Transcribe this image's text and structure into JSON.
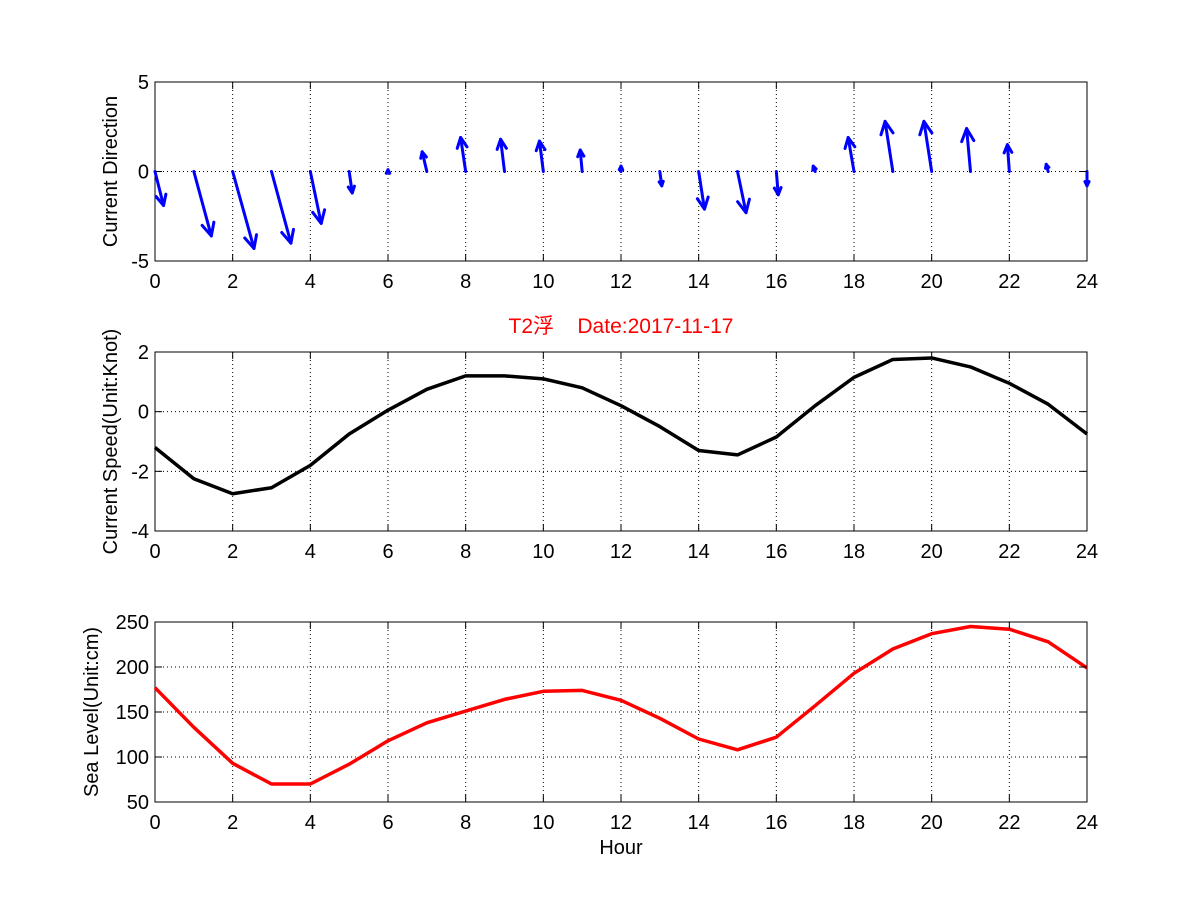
{
  "chart_data": [
    {
      "type": "quiver",
      "title": "",
      "xlabel": "",
      "ylabel": "Current Direction",
      "xlim": [
        0,
        24
      ],
      "ylim": [
        -5,
        5
      ],
      "xticks": [
        0,
        2,
        4,
        6,
        8,
        10,
        12,
        14,
        16,
        18,
        20,
        22,
        24
      ],
      "yticks": [
        -5,
        0,
        5
      ],
      "grid": true,
      "color": "#0000ff",
      "vectors": [
        {
          "x": 0,
          "u": 0.22,
          "v": -1.9
        },
        {
          "x": 1,
          "u": 0.45,
          "v": -3.6
        },
        {
          "x": 2,
          "u": 0.55,
          "v": -4.3
        },
        {
          "x": 3,
          "u": 0.5,
          "v": -4.0
        },
        {
          "x": 4,
          "u": 0.28,
          "v": -2.9
        },
        {
          "x": 5,
          "u": 0.08,
          "v": -1.2
        },
        {
          "x": 6,
          "u": 0.0,
          "v": 0.1
        },
        {
          "x": 7,
          "u": -0.12,
          "v": 1.1
        },
        {
          "x": 8,
          "u": -0.13,
          "v": 1.9
        },
        {
          "x": 9,
          "u": -0.1,
          "v": 1.8
        },
        {
          "x": 10,
          "u": -0.1,
          "v": 1.7
        },
        {
          "x": 11,
          "u": -0.05,
          "v": 1.2
        },
        {
          "x": 12,
          "u": 0.0,
          "v": 0.3
        },
        {
          "x": 13,
          "u": 0.05,
          "v": -0.8
        },
        {
          "x": 14,
          "u": 0.15,
          "v": -2.1
        },
        {
          "x": 15,
          "u": 0.22,
          "v": -2.3
        },
        {
          "x": 16,
          "u": 0.05,
          "v": -1.3
        },
        {
          "x": 17,
          "u": -0.05,
          "v": 0.3
        },
        {
          "x": 18,
          "u": -0.15,
          "v": 1.9
        },
        {
          "x": 19,
          "u": -0.2,
          "v": 2.8
        },
        {
          "x": 20,
          "u": -0.2,
          "v": 2.8
        },
        {
          "x": 21,
          "u": -0.1,
          "v": 2.4
        },
        {
          "x": 22,
          "u": -0.05,
          "v": 1.5
        },
        {
          "x": 23,
          "u": -0.05,
          "v": 0.4
        },
        {
          "x": 24,
          "u": 0.0,
          "v": -0.8
        }
      ]
    },
    {
      "type": "line",
      "title": "T2浮    Date:2017-11-17",
      "xlabel": "",
      "ylabel": "Current Speed(Unit:Knot)",
      "xlim": [
        0,
        24
      ],
      "ylim": [
        -4,
        2
      ],
      "xticks": [
        0,
        2,
        4,
        6,
        8,
        10,
        12,
        14,
        16,
        18,
        20,
        22,
        24
      ],
      "yticks": [
        -4,
        -2,
        0,
        2
      ],
      "grid": true,
      "color": "#000000",
      "x": [
        0,
        1,
        2,
        3,
        4,
        5,
        6,
        7,
        8,
        9,
        10,
        11,
        12,
        13,
        14,
        15,
        16,
        17,
        18,
        19,
        20,
        21,
        22,
        23,
        24
      ],
      "y": [
        -1.2,
        -2.25,
        -2.75,
        -2.55,
        -1.8,
        -0.75,
        0.05,
        0.75,
        1.2,
        1.2,
        1.1,
        0.8,
        0.2,
        -0.5,
        -1.3,
        -1.45,
        -0.85,
        0.2,
        1.15,
        1.75,
        1.8,
        1.5,
        0.95,
        0.25,
        -0.75
      ]
    },
    {
      "type": "line",
      "title": "",
      "xlabel": "Hour",
      "ylabel": "Sea Level(Unit:cm)",
      "xlim": [
        0,
        24
      ],
      "ylim": [
        50,
        250
      ],
      "xticks": [
        0,
        2,
        4,
        6,
        8,
        10,
        12,
        14,
        16,
        18,
        20,
        22,
        24
      ],
      "yticks": [
        50,
        100,
        150,
        200,
        250
      ],
      "grid": true,
      "color": "#ff0000",
      "x": [
        0,
        1,
        2,
        3,
        4,
        5,
        6,
        7,
        8,
        9,
        10,
        11,
        12,
        13,
        14,
        15,
        16,
        17,
        18,
        19,
        20,
        21,
        22,
        23,
        24
      ],
      "y": [
        177,
        133,
        93,
        70,
        70,
        92,
        118,
        138,
        151,
        164,
        173,
        174,
        163,
        143,
        120,
        108,
        122,
        157,
        193,
        220,
        237,
        245,
        242,
        228,
        199
      ]
    }
  ]
}
